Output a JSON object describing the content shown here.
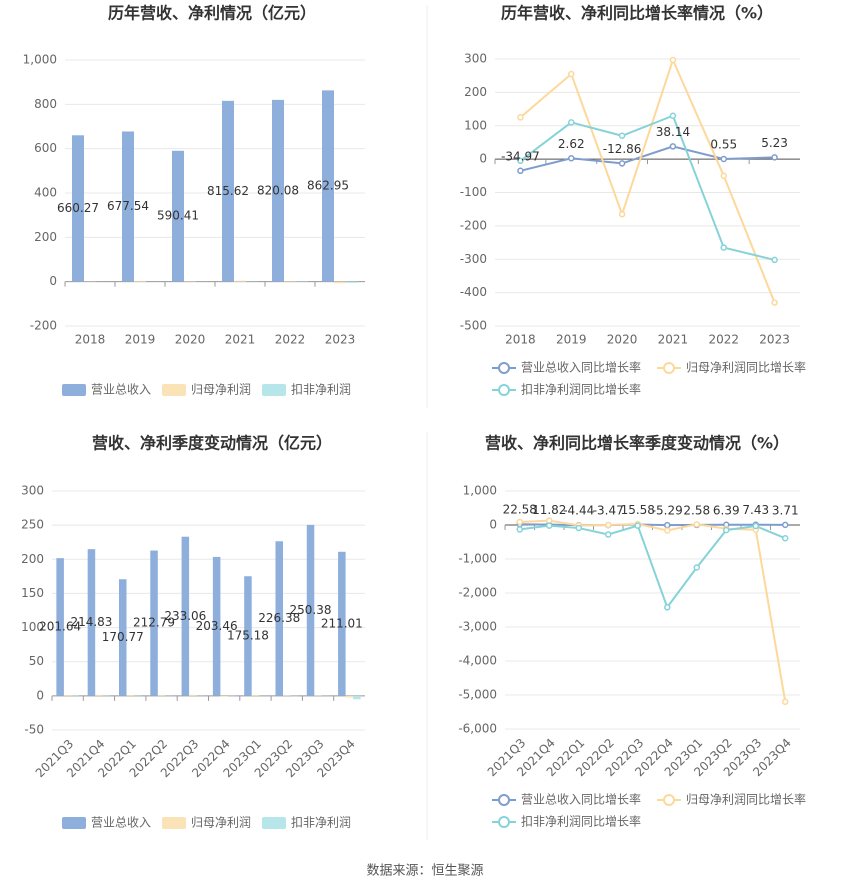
{
  "chart_data": [
    {
      "type": "bar",
      "title": "历年营收、净利情况（亿元）",
      "categories": [
        "2018",
        "2019",
        "2020",
        "2021",
        "2022",
        "2023"
      ],
      "series": [
        {
          "name": "营业总收入",
          "color": "#8eaedb",
          "data_labels": true,
          "values": [
            660.27,
            677.54,
            590.41,
            815.62,
            820.08,
            862.95
          ]
        },
        {
          "name": "归母净利润",
          "color": "#fbe3b8",
          "values": [
            1.0,
            3.5,
            -2.3,
            4.5,
            2.3,
            -7.5
          ]
        },
        {
          "name": "扣非净利润",
          "color": "#b7e6ea",
          "values": [
            0.1,
            0.2,
            0.35,
            0.8,
            -1.3,
            -5.2
          ]
        }
      ],
      "ylim": [
        -200,
        1000
      ],
      "yticks": [
        -200,
        0,
        200,
        400,
        600,
        800,
        {
          "value": 1000,
          "label": "1,000"
        }
      ],
      "grid": true
    },
    {
      "type": "line",
      "title": "历年营收、净利同比增长率情况（%）",
      "categories": [
        "2018",
        "2019",
        "2020",
        "2021",
        "2022",
        "2023"
      ],
      "series": [
        {
          "name": "营业总收入同比增长率",
          "color": "#7f9ccf",
          "data_labels": true,
          "values": [
            -34.97,
            2.62,
            -12.86,
            38.14,
            0.55,
            5.23
          ]
        },
        {
          "name": "归母净利润同比增长率",
          "color": "#fdd89a",
          "values": [
            125,
            255,
            -165,
            297,
            -50,
            -430
          ]
        },
        {
          "name": "扣非净利润同比增长率",
          "color": "#85d3d8",
          "values": [
            -5,
            110,
            70,
            130,
            -265,
            -302
          ]
        }
      ],
      "ylim": [
        -500,
        300
      ],
      "yticks": [
        -500,
        -400,
        -300,
        -200,
        -100,
        0,
        100,
        200,
        300
      ],
      "grid": true
    },
    {
      "type": "bar",
      "title": "营收、净利季度变动情况（亿元）",
      "categories": [
        "2021Q3",
        "2021Q4",
        "2022Q1",
        "2022Q2",
        "2022Q3",
        "2022Q4",
        "2023Q1",
        "2023Q2",
        "2023Q3",
        "2023Q4"
      ],
      "series": [
        {
          "name": "营业总收入",
          "color": "#8eaedb",
          "data_labels": true,
          "values": [
            201.64,
            214.83,
            170.77,
            212.79,
            233.06,
            203.46,
            175.18,
            226.38,
            250.38,
            211.01
          ]
        },
        {
          "name": "归母净利润",
          "color": "#fbe3b8",
          "values": [
            1.2,
            1.5,
            1.1,
            1.0,
            1.4,
            -1.2,
            1.3,
            0.8,
            0.6,
            -2.5
          ]
        },
        {
          "name": "扣非净利润",
          "color": "#b7e6ea",
          "values": [
            0.5,
            0.4,
            0.3,
            0.2,
            0.2,
            -0.3,
            -0.1,
            -0.4,
            0.2,
            -5.0
          ]
        }
      ],
      "ylim": [
        -50,
        300
      ],
      "yticks": [
        -50,
        0,
        50,
        100,
        150,
        200,
        250,
        300
      ],
      "grid": true
    },
    {
      "type": "line",
      "title": "营收、净利同比增长率季度变动情况（%）",
      "categories": [
        "2021Q3",
        "2021Q4",
        "2022Q1",
        "2022Q2",
        "2022Q3",
        "2022Q4",
        "2023Q1",
        "2023Q2",
        "2023Q3",
        "2023Q4"
      ],
      "series": [
        {
          "name": "营业总收入同比增长率",
          "color": "#7f9ccf",
          "data_labels": true,
          "values": [
            22.58,
            11.82,
            -4.44,
            -3.47,
            15.58,
            -5.29,
            2.58,
            6.39,
            7.43,
            3.71
          ]
        },
        {
          "name": "归母净利润同比增长率",
          "color": "#fdd89a",
          "values": [
            90,
            130,
            -10,
            0,
            30,
            -160,
            20,
            -110,
            -140,
            -5200
          ]
        },
        {
          "name": "扣非净利润同比增长率",
          "color": "#85d3d8",
          "values": [
            -130,
            -20,
            -90,
            -280,
            -20,
            -2420,
            -1250,
            -150,
            -30,
            -390
          ]
        }
      ],
      "ylim": [
        -6000,
        1000
      ],
      "yticks": [
        {
          "value": -6000,
          "label": "-6,000"
        },
        {
          "value": -5000,
          "label": "-5,000"
        },
        {
          "value": -4000,
          "label": "-4,000"
        },
        {
          "value": -3000,
          "label": "-3,000"
        },
        {
          "value": -2000,
          "label": "-2,000"
        },
        {
          "value": -1000,
          "label": "-1,000"
        },
        0,
        {
          "value": 1000,
          "label": "1,000"
        }
      ],
      "grid": true
    }
  ],
  "source": "数据来源：恒生聚源"
}
